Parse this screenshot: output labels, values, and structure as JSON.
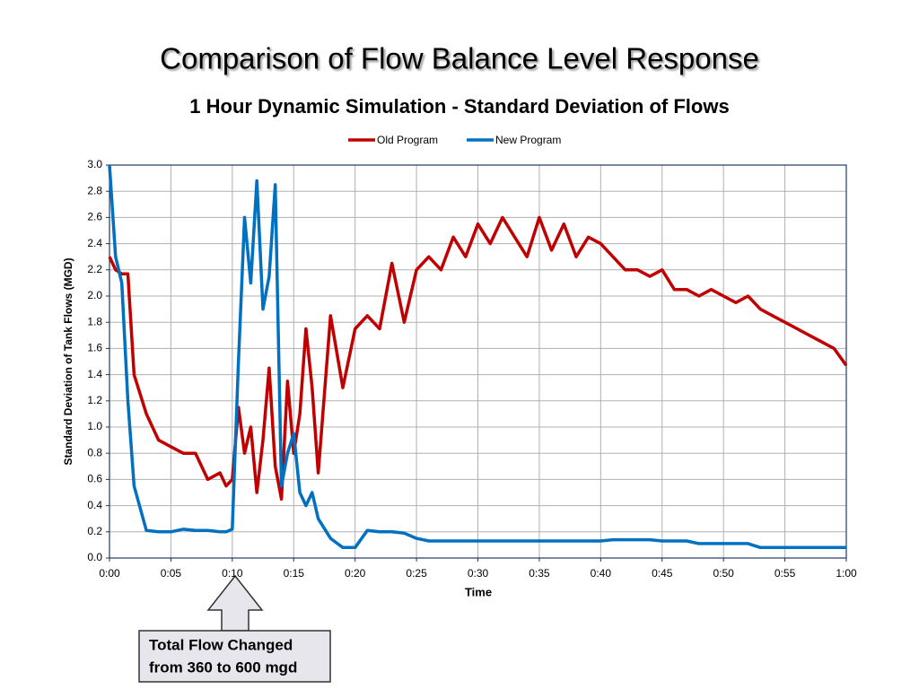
{
  "chart_data": {
    "type": "line",
    "title": "Comparison of Flow Balance Level Response",
    "subtitle": "1 Hour Dynamic Simulation - Standard Deviation of Flows",
    "x_label": "Time",
    "y_label": "Standard Deviation of Tank Flows (MGD)",
    "annotation": [
      "Total Flow Changed",
      "from 360 to 600 mgd"
    ],
    "grid": true,
    "legend": "top",
    "x": [
      0,
      0.5,
      1,
      1.5,
      2,
      3,
      4,
      5,
      6,
      7,
      8,
      9,
      9.5,
      10,
      10.5,
      11,
      11.5,
      12,
      12.5,
      13,
      13.5,
      14,
      14.5,
      15,
      15.5,
      16,
      16.5,
      17,
      18,
      19,
      20,
      21,
      22,
      23,
      24,
      25,
      26,
      27,
      28,
      29,
      30,
      31,
      32,
      33,
      34,
      35,
      36,
      37,
      38,
      39,
      40,
      41,
      42,
      43,
      44,
      45,
      46,
      47,
      48,
      49,
      50,
      51,
      52,
      53,
      54,
      55,
      56,
      57,
      58,
      59,
      60
    ],
    "series": [
      {
        "name": "Old Program",
        "color": "#c00000",
        "values": [
          2.3,
          2.2,
          2.17,
          2.17,
          1.4,
          1.1,
          0.9,
          0.85,
          0.8,
          0.8,
          0.6,
          0.65,
          0.55,
          0.6,
          1.15,
          0.8,
          1.0,
          0.5,
          0.9,
          1.45,
          0.7,
          0.45,
          1.35,
          0.8,
          1.1,
          1.75,
          1.3,
          0.65,
          1.85,
          1.3,
          1.75,
          1.85,
          1.75,
          2.25,
          1.8,
          2.2,
          2.3,
          2.2,
          2.45,
          2.3,
          2.55,
          2.4,
          2.6,
          2.45,
          2.3,
          2.6,
          2.35,
          2.55,
          2.3,
          2.45,
          2.4,
          2.3,
          2.2,
          2.2,
          2.15,
          2.2,
          2.05,
          2.05,
          2.0,
          2.05,
          2.0,
          1.95,
          2.0,
          1.9,
          1.85,
          1.8,
          1.75,
          1.7,
          1.65,
          1.6,
          1.47
        ]
      },
      {
        "name": "New Program",
        "color": "#0070c0",
        "values": [
          3.0,
          2.3,
          2.1,
          1.2,
          0.55,
          0.21,
          0.2,
          0.2,
          0.22,
          0.21,
          0.21,
          0.2,
          0.2,
          0.22,
          1.5,
          2.6,
          2.1,
          2.88,
          1.9,
          2.15,
          2.85,
          0.55,
          0.8,
          0.95,
          0.5,
          0.4,
          0.5,
          0.3,
          0.15,
          0.08,
          0.08,
          0.21,
          0.2,
          0.2,
          0.19,
          0.15,
          0.13,
          0.13,
          0.13,
          0.13,
          0.13,
          0.13,
          0.13,
          0.13,
          0.13,
          0.13,
          0.13,
          0.13,
          0.13,
          0.13,
          0.13,
          0.14,
          0.14,
          0.14,
          0.14,
          0.13,
          0.13,
          0.13,
          0.11,
          0.11,
          0.11,
          0.11,
          0.11,
          0.08,
          0.08,
          0.08,
          0.08,
          0.08,
          0.08,
          0.08,
          0.08
        ]
      }
    ],
    "xlim": [
      0,
      60
    ],
    "xticks": [
      {
        "value": 0,
        "label": "0:00"
      },
      {
        "value": 5,
        "label": "0:05"
      },
      {
        "value": 10,
        "label": "0:10"
      },
      {
        "value": 15,
        "label": "0:15"
      },
      {
        "value": 20,
        "label": "0:20"
      },
      {
        "value": 25,
        "label": "0:25"
      },
      {
        "value": 30,
        "label": "0:30"
      },
      {
        "value": 35,
        "label": "0:35"
      },
      {
        "value": 40,
        "label": "0:40"
      },
      {
        "value": 45,
        "label": "0:45"
      },
      {
        "value": 50,
        "label": "0:50"
      },
      {
        "value": 55,
        "label": "0:55"
      },
      {
        "value": 60,
        "label": "1:00"
      }
    ],
    "ylim": [
      0,
      3
    ],
    "yticks": [
      {
        "value": 0,
        "label": "0.0"
      },
      {
        "value": 0.2,
        "label": "0.2"
      },
      {
        "value": 0.4,
        "label": "0.4"
      },
      {
        "value": 0.6,
        "label": "0.6"
      },
      {
        "value": 0.8,
        "label": "0.8"
      },
      {
        "value": 1,
        "label": "1.0"
      },
      {
        "value": 1.2,
        "label": "1.2"
      },
      {
        "value": 1.4,
        "label": "1.4"
      },
      {
        "value": 1.6,
        "label": "1.6"
      },
      {
        "value": 1.8,
        "label": "1.8"
      },
      {
        "value": 2,
        "label": "2.0"
      },
      {
        "value": 2.2,
        "label": "2.2"
      },
      {
        "value": 2.4,
        "label": "2.4"
      },
      {
        "value": 2.6,
        "label": "2.6"
      },
      {
        "value": 2.8,
        "label": "2.8"
      },
      {
        "value": 3,
        "label": "3.0"
      }
    ]
  }
}
